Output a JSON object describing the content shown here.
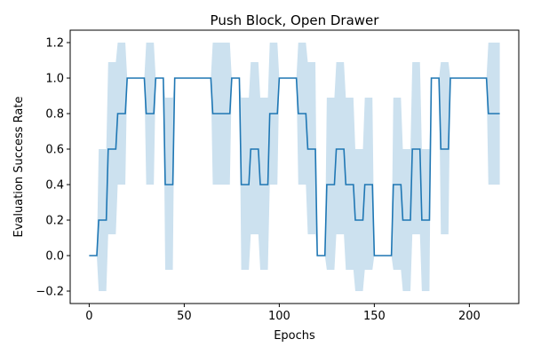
{
  "chart_data": {
    "type": "line",
    "title": "Push Block, Open Drawer",
    "xlabel": "Epochs",
    "ylabel": "Evaluation Success Rate",
    "xlim": [
      -10,
      226
    ],
    "ylim": [
      -0.27,
      1.27
    ],
    "xticks": [
      0,
      50,
      100,
      150,
      200
    ],
    "yticks": [
      -0.2,
      0.0,
      0.2,
      0.4,
      0.6,
      0.8,
      1.0,
      1.2
    ],
    "ytick_labels": [
      "−0.2",
      "0.0",
      "0.2",
      "0.4",
      "0.6",
      "0.8",
      "1.0",
      "1.2"
    ],
    "grid": false,
    "line_color": "#1f77b4",
    "band_color": "#cce1ef",
    "series": [
      {
        "x": [
          0,
          5,
          10,
          15,
          20,
          25,
          30,
          35,
          40,
          45,
          50,
          55,
          60,
          65,
          70,
          75,
          80,
          85,
          90,
          95,
          100,
          105,
          110,
          115,
          120,
          125,
          130,
          135,
          140,
          145,
          150,
          155,
          160,
          165,
          170,
          175,
          180,
          185,
          190,
          195,
          200,
          205,
          210,
          215
        ],
        "values": [
          0.0,
          0.2,
          0.6,
          0.8,
          1.0,
          1.0,
          0.8,
          1.0,
          0.4,
          1.0,
          1.0,
          1.0,
          1.0,
          0.8,
          0.8,
          1.0,
          0.4,
          0.6,
          0.4,
          0.8,
          1.0,
          1.0,
          0.8,
          0.6,
          0.0,
          0.4,
          0.6,
          0.4,
          0.2,
          0.4,
          0.0,
          0.0,
          0.4,
          0.2,
          0.6,
          0.2,
          1.0,
          0.6,
          1.0,
          1.0,
          1.0,
          1.0,
          0.8,
          0.8
        ],
        "lower": [
          0.0,
          -0.2,
          0.12,
          0.4,
          1.0,
          1.0,
          0.4,
          1.0,
          -0.08,
          1.0,
          1.0,
          1.0,
          1.0,
          0.4,
          0.4,
          1.0,
          -0.08,
          0.12,
          -0.08,
          0.4,
          1.0,
          1.0,
          0.4,
          0.12,
          0.0,
          -0.08,
          0.12,
          -0.08,
          -0.2,
          -0.08,
          0.0,
          0.0,
          -0.08,
          -0.2,
          0.12,
          -0.2,
          1.0,
          0.12,
          1.0,
          1.0,
          1.0,
          1.0,
          0.4,
          0.4
        ],
        "upper": [
          0.0,
          0.6,
          1.09,
          1.2,
          1.0,
          1.0,
          1.2,
          1.0,
          0.89,
          1.0,
          1.0,
          1.0,
          1.0,
          1.2,
          1.2,
          1.0,
          0.89,
          1.09,
          0.89,
          1.2,
          1.0,
          1.0,
          1.2,
          1.09,
          0.0,
          0.89,
          1.09,
          0.89,
          0.6,
          0.89,
          0.0,
          0.0,
          0.89,
          0.6,
          1.09,
          0.6,
          1.0,
          1.09,
          1.0,
          1.0,
          1.0,
          1.0,
          1.2,
          1.2
        ]
      }
    ]
  }
}
